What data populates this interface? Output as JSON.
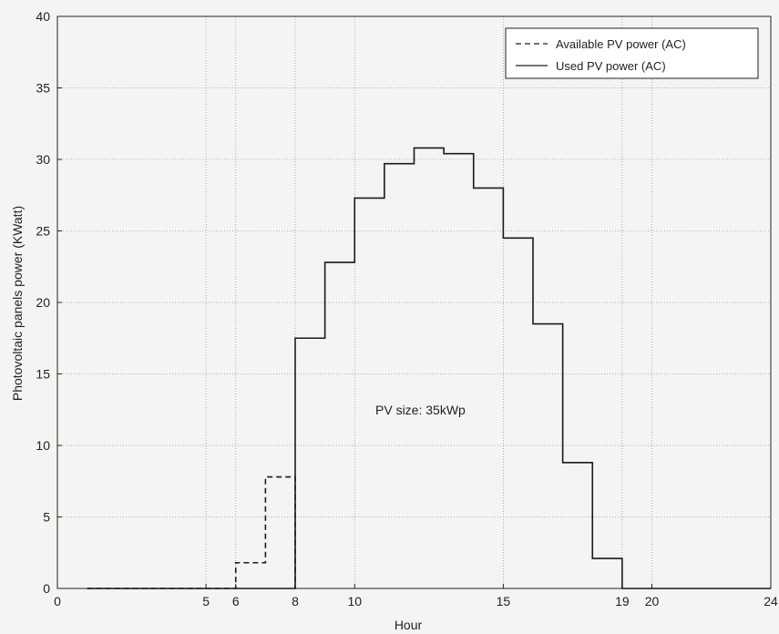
{
  "chart_data": {
    "type": "line",
    "step": true,
    "title": "",
    "xlabel": "Hour",
    "ylabel": "Photovoltaic panels power (KWatt)",
    "xlim": [
      0,
      24
    ],
    "ylim": [
      0,
      40
    ],
    "x_ticks": [
      0,
      5,
      6,
      8,
      10,
      15,
      19,
      20,
      24
    ],
    "y_ticks": [
      0,
      5,
      10,
      15,
      20,
      25,
      30,
      35,
      40
    ],
    "grid": true,
    "legend_position": "top-right",
    "annotation": "PV size: 35kWp",
    "series": [
      {
        "name": "Available PV power (AC)",
        "style": "dashed",
        "x": [
          1,
          6,
          7,
          8
        ],
        "y": [
          0,
          1.8,
          7.8,
          0
        ]
      },
      {
        "name": "Used PV power (AC)",
        "style": "solid",
        "x": [
          1,
          8,
          9,
          10,
          11,
          12,
          13,
          14,
          15,
          16,
          17,
          18,
          19,
          24
        ],
        "y": [
          0,
          17.5,
          22.8,
          27.3,
          29.7,
          30.8,
          30.4,
          28.0,
          24.5,
          18.5,
          8.8,
          2.1,
          0,
          0
        ]
      }
    ]
  }
}
